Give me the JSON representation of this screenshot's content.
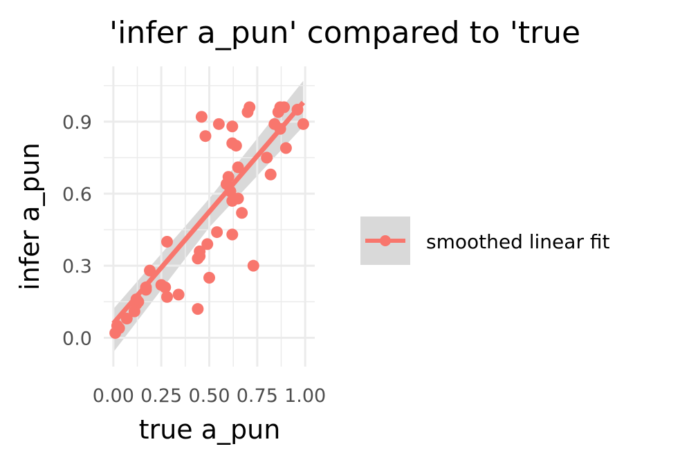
{
  "chart_data": {
    "type": "scatter",
    "title": "'infer a_pun' compared to 'true",
    "xlabel": "true a_pun",
    "ylabel": "infer a_pun",
    "xlim": [
      -0.05,
      1.05
    ],
    "ylim": [
      -0.12,
      1.13
    ],
    "x_ticks": [
      0.0,
      0.25,
      0.5,
      0.75,
      1.0
    ],
    "x_tick_labels": [
      "0.00",
      "0.25",
      "0.50",
      "0.75",
      "1.00"
    ],
    "y_ticks": [
      0.0,
      0.3,
      0.6,
      0.9
    ],
    "y_tick_labels": [
      "0.0",
      "0.3",
      "0.6",
      "0.9"
    ],
    "grid": true,
    "legend_position": "right",
    "legend": [
      {
        "label": "smoothed linear fit",
        "marker": "point-with-line"
      }
    ],
    "colors": {
      "points": "#F8766D",
      "fit_line": "#F8766D",
      "ribbon": "#cccccc",
      "grid": "#ebebeb",
      "legend_key_bg": "#d9d9d9"
    },
    "fit_line": {
      "x": [
        0.0,
        0.99
      ],
      "y": [
        0.06,
        0.98
      ]
    },
    "ribbon": {
      "x": [
        0.0,
        0.5,
        0.99
      ],
      "upper": [
        0.12,
        0.58,
        1.07
      ],
      "lower": [
        -0.06,
        0.46,
        0.88
      ]
    },
    "series": [
      {
        "points": [
          {
            "x": 0.01,
            "y": 0.02
          },
          {
            "x": 0.02,
            "y": 0.05
          },
          {
            "x": 0.03,
            "y": 0.04
          },
          {
            "x": 0.07,
            "y": 0.08
          },
          {
            "x": 0.11,
            "y": 0.11
          },
          {
            "x": 0.12,
            "y": 0.14
          },
          {
            "x": 0.13,
            "y": 0.15
          },
          {
            "x": 0.12,
            "y": 0.16
          },
          {
            "x": 0.17,
            "y": 0.2
          },
          {
            "x": 0.17,
            "y": 0.21
          },
          {
            "x": 0.19,
            "y": 0.28
          },
          {
            "x": 0.25,
            "y": 0.22
          },
          {
            "x": 0.27,
            "y": 0.21
          },
          {
            "x": 0.28,
            "y": 0.17
          },
          {
            "x": 0.28,
            "y": 0.4
          },
          {
            "x": 0.34,
            "y": 0.18
          },
          {
            "x": 0.44,
            "y": 0.12
          },
          {
            "x": 0.44,
            "y": 0.33
          },
          {
            "x": 0.45,
            "y": 0.34
          },
          {
            "x": 0.45,
            "y": 0.36
          },
          {
            "x": 0.46,
            "y": 0.92
          },
          {
            "x": 0.48,
            "y": 0.84
          },
          {
            "x": 0.49,
            "y": 0.39
          },
          {
            "x": 0.5,
            "y": 0.25
          },
          {
            "x": 0.54,
            "y": 0.44
          },
          {
            "x": 0.55,
            "y": 0.89
          },
          {
            "x": 0.59,
            "y": 0.64
          },
          {
            "x": 0.6,
            "y": 0.67
          },
          {
            "x": 0.61,
            "y": 0.61
          },
          {
            "x": 0.62,
            "y": 0.43
          },
          {
            "x": 0.62,
            "y": 0.57
          },
          {
            "x": 0.62,
            "y": 0.81
          },
          {
            "x": 0.62,
            "y": 0.88
          },
          {
            "x": 0.64,
            "y": 0.8
          },
          {
            "x": 0.65,
            "y": 0.58
          },
          {
            "x": 0.65,
            "y": 0.71
          },
          {
            "x": 0.67,
            "y": 0.52
          },
          {
            "x": 0.7,
            "y": 0.94
          },
          {
            "x": 0.71,
            "y": 0.96
          },
          {
            "x": 0.73,
            "y": 0.3
          },
          {
            "x": 0.8,
            "y": 0.75
          },
          {
            "x": 0.82,
            "y": 0.68
          },
          {
            "x": 0.84,
            "y": 0.89
          },
          {
            "x": 0.86,
            "y": 0.94
          },
          {
            "x": 0.87,
            "y": 0.87
          },
          {
            "x": 0.87,
            "y": 0.96
          },
          {
            "x": 0.89,
            "y": 0.96
          },
          {
            "x": 0.9,
            "y": 0.79
          },
          {
            "x": 0.96,
            "y": 0.95
          },
          {
            "x": 0.99,
            "y": 0.89
          }
        ]
      }
    ]
  }
}
